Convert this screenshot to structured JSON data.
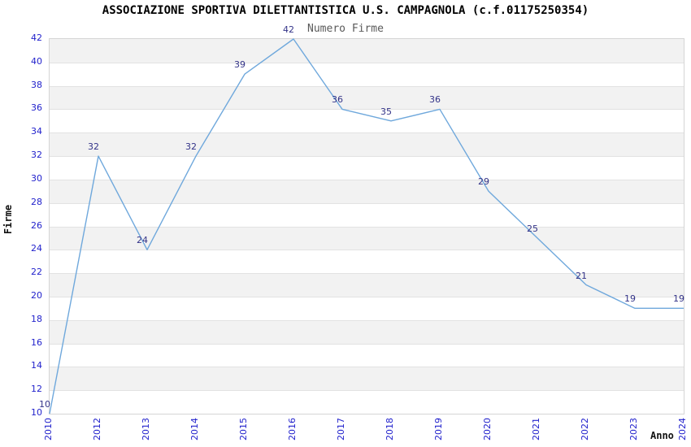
{
  "chart_data": {
    "type": "line",
    "title": "ASSOCIAZIONE SPORTIVA DILETTANTISTICA U.S. CAMPAGNOLA (c.f.01175250354)",
    "subtitle": "Numero Firme",
    "xlabel": "Anno",
    "ylabel": "Firme",
    "categories": [
      "2010",
      "2012",
      "2013",
      "2014",
      "2015",
      "2016",
      "2017",
      "2018",
      "2019",
      "2020",
      "2021",
      "2022",
      "2023",
      "2024"
    ],
    "series": [
      {
        "name": "Numero Firme",
        "values": [
          10,
          32,
          24,
          32,
          39,
          42,
          36,
          35,
          36,
          29,
          25,
          21,
          19,
          19
        ]
      }
    ],
    "ylim": [
      10,
      42
    ],
    "ytick_step": 2,
    "xtick_rotation_degrees": 90,
    "legend": "none",
    "grid": "horizontal-bands-alternating",
    "data_labels_shown": true,
    "colors": {
      "line": "#6FA8DC",
      "tick_labels": "#2222CC",
      "data_labels": "#333388",
      "band_gray": "#F2F2F2",
      "band_white": "#FFFFFF",
      "gridline": "#E2E2E2",
      "plot_border": "#D5D5D5",
      "title_text": "#000000",
      "subtitle_text": "#5A5A5A",
      "axis_title_text": "#111111"
    }
  }
}
